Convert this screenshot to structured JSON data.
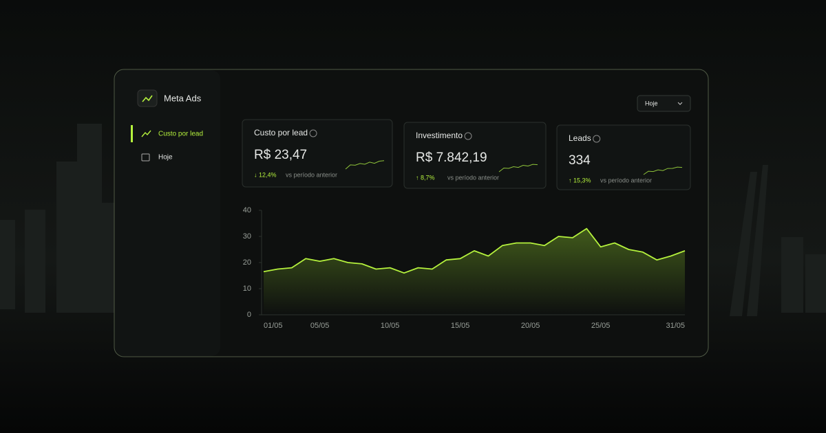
{
  "app": {
    "title": "Meta Ads",
    "nav": [
      "Custo por lead",
      "Hoje"
    ],
    "filter": "Hoje"
  },
  "cards": [
    {
      "label": "Custo por lead",
      "value": "R$ 23,47",
      "change": "↓ 12,4%",
      "note": "vs período anterior"
    },
    {
      "label": "Investimento",
      "value": "R$ 7.842,19",
      "change": "↑ 8,7%",
      "note": "vs período anterior"
    },
    {
      "label": "Leads",
      "value": "334",
      "change": "↑ 15,3%",
      "note": "vs período anterior"
    }
  ],
  "chart_data": {
    "type": "line",
    "area": true,
    "color": "#b5f23d",
    "categories": [
      "01/05",
      null,
      null,
      null,
      "05/05",
      null,
      null,
      null,
      null,
      "10/05",
      null,
      null,
      null,
      null,
      "15/05",
      null,
      null,
      null,
      null,
      "20/05",
      null,
      null,
      null,
      null,
      "25/05",
      null,
      null,
      null,
      null,
      null,
      "31/05"
    ],
    "values": [
      16.5,
      17.5,
      18,
      21.5,
      20.5,
      21.5,
      20,
      19.5,
      17.5,
      18,
      16,
      18,
      17.5,
      21,
      21.5,
      24.5,
      22.5,
      26.5,
      27.5,
      27.5,
      26.5,
      30,
      29.5,
      33,
      26,
      27.5,
      25,
      24,
      21,
      22.5,
      24.5
    ],
    "ylim": [
      0,
      40
    ],
    "yticks": [
      0,
      10,
      20,
      30,
      40
    ],
    "grid": false
  }
}
